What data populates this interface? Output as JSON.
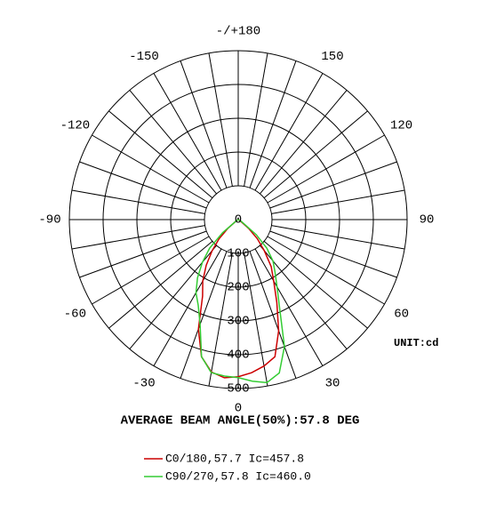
{
  "chart_data": {
    "type": "polar",
    "title": "AVERAGE BEAM ANGLE(50%):57.8 DEG",
    "unit_label": "UNIT:cd",
    "x": [
      -90,
      -60,
      -50,
      -45,
      -40,
      -35,
      -30,
      -25,
      -20,
      -15,
      -10,
      -5,
      0,
      5,
      10,
      15,
      20,
      25,
      30,
      35,
      40,
      45,
      50,
      60,
      90
    ],
    "series": [
      {
        "name": "C0/180,57.7 Ic=457.8",
        "color": "#cc0000",
        "values": [
          0,
          5,
          40,
          80,
          120,
          165,
          210,
          250,
          345,
          420,
          458,
          470,
          465,
          455,
          440,
          420,
          350,
          270,
          210,
          170,
          120,
          80,
          40,
          5,
          0
        ]
      },
      {
        "name": "C90/270,57.8 Ic=460.0",
        "color": "#33cc33",
        "values": [
          0,
          5,
          60,
          120,
          165,
          210,
          250,
          280,
          330,
          420,
          460,
          465,
          468,
          480,
          490,
          470,
          400,
          290,
          230,
          190,
          160,
          120,
          70,
          10,
          0
        ]
      }
    ],
    "rlim": [
      0,
      500
    ],
    "rticks": [
      0,
      100,
      200,
      300,
      400,
      500
    ],
    "xticks": [
      -150,
      -120,
      -90,
      -60,
      -30,
      0,
      30,
      60,
      90,
      120,
      150,
      {
        "value": 180,
        "label": "-/+180"
      }
    ]
  }
}
